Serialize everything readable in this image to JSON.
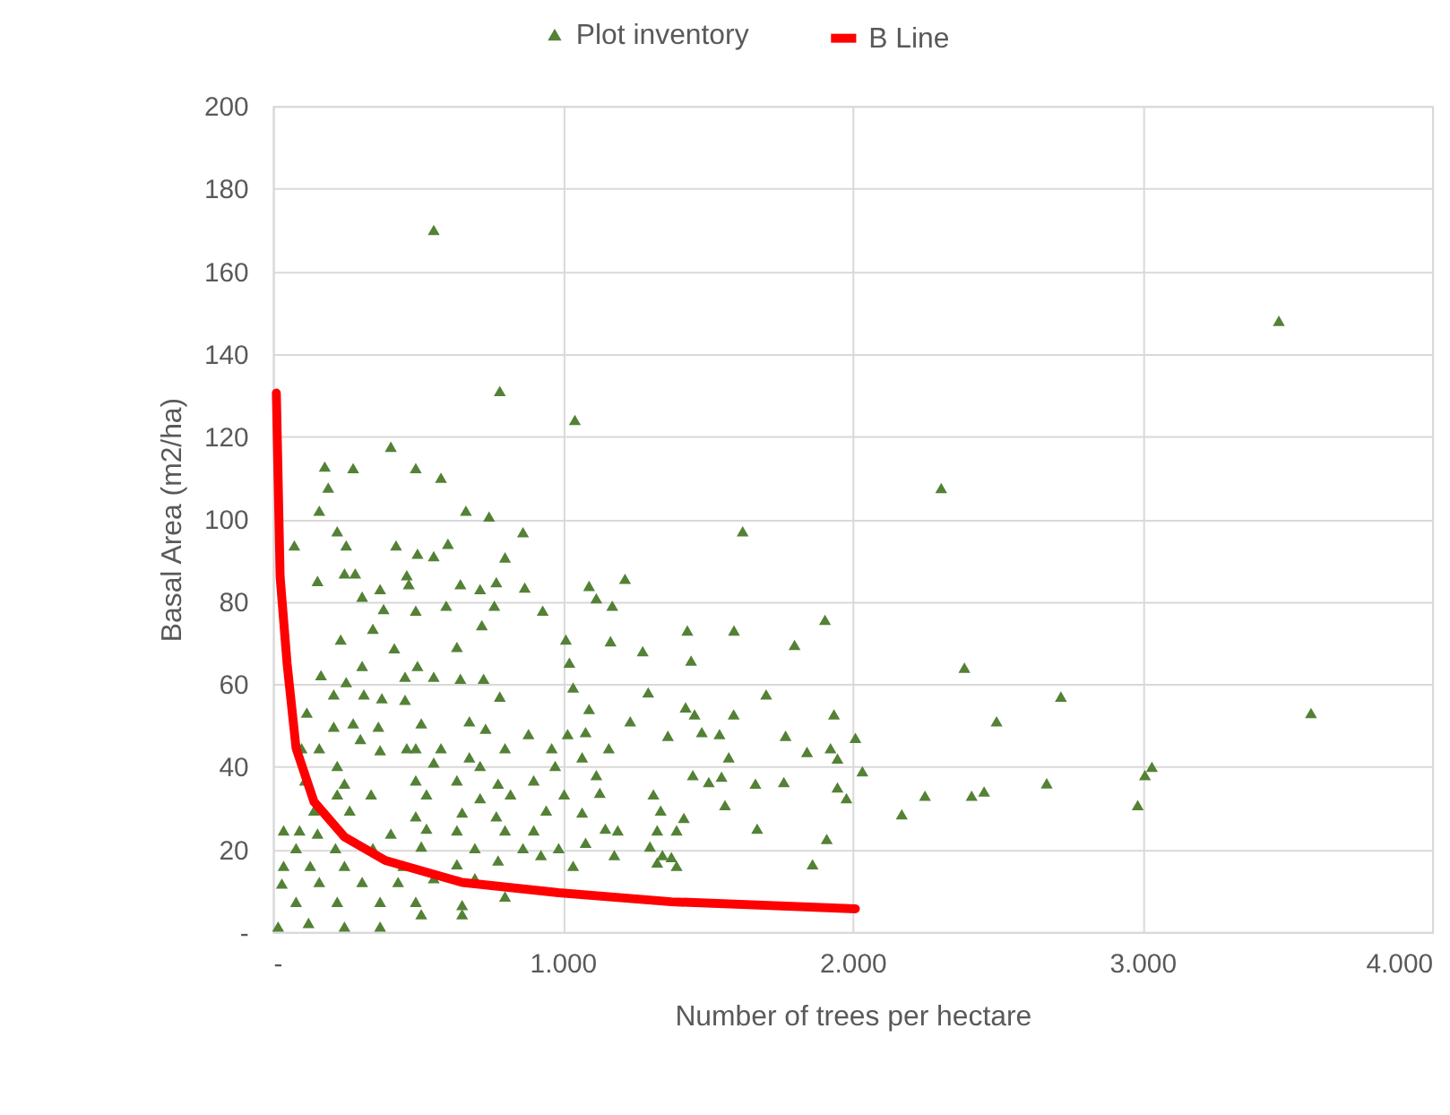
{
  "chart_data": {
    "type": "scatter",
    "xlabel": "Number of trees per hectare",
    "ylabel": "Basal Area (m2/ha)",
    "xlim": [
      0,
      4000
    ],
    "xticks": [
      {
        "value": 0,
        "label": "-"
      },
      {
        "value": 1000,
        "label": "1.000"
      },
      {
        "value": 2000,
        "label": "2.000"
      },
      {
        "value": 3000,
        "label": "3.000"
      },
      {
        "value": 4000,
        "label": "4.000"
      }
    ],
    "ylim": [
      0,
      200
    ],
    "yticks": [
      {
        "value": 0,
        "label": "-"
      },
      20,
      40,
      60,
      80,
      100,
      120,
      140,
      160,
      180,
      200
    ],
    "grid": true,
    "legend": "top",
    "series": [
      {
        "name": "Plot inventory",
        "marker": "triangle",
        "color": "#538135",
        "x": [
          555,
          783,
          1042,
          2306,
          3471,
          3582,
          2719,
          3033,
          3009,
          2984,
          2670,
          2386,
          2497,
          2250,
          2170,
          2411,
          2454,
          1621,
          1905,
          1430,
          1591,
          1800,
          1443,
          1276,
          1295,
          1702,
          1936,
          1590,
          1424,
          1455,
          1363,
          1480,
          1541,
          1769,
          1843,
          1924,
          1948,
          2010,
          2034,
          1573,
          1449,
          1504,
          1548,
          1665,
          1763,
          1948,
          1979,
          1560,
          1338,
          1418,
          1393,
          1671,
          1911,
          1862,
          1326,
          1301,
          1344,
          1375,
          1393,
          1326,
          407,
          179,
          277,
          493,
          580,
          191,
          160,
          666,
          746,
          222,
          863,
          74,
          253,
          425,
          604,
          499,
          555,
          801,
          154,
          247,
          284,
          462,
          469,
          647,
          715,
          771,
          869,
          1091,
          1215,
          308,
          370,
          598,
          764,
          931,
          1116,
          1171,
          382,
          493,
          721,
          1165,
          1011,
          635,
          419,
          234,
          345,
          1023,
          308,
          166,
          253,
          456,
          499,
          555,
          647,
          727,
          1036,
          1091,
          210,
          314,
          376,
          456,
          783,
          117,
          210,
          277,
          364,
          512,
          678,
          734,
          882,
          1017,
          1079,
          1233,
          99,
          160,
          302,
          370,
          462,
          493,
          580,
          678,
          801,
          962,
          1159,
          222,
          555,
          715,
          974,
          1067,
          111,
          247,
          493,
          635,
          777,
          900,
          1116,
          222,
          339,
          530,
          715,
          820,
          1005,
          1313,
          1128,
          142,
          265,
          493,
          653,
          771,
          943,
          1067,
          37,
          92,
          154,
          407,
          530,
          635,
          801,
          900,
          1147,
          1190,
          80,
          216,
          345,
          512,
          697,
          863,
          986,
          1079,
          1178,
          37,
          129,
          247,
          450,
          635,
          777,
          925,
          1036,
          31,
          160,
          308,
          432,
          555,
          697,
          801,
          80,
          222,
          370,
          493,
          653,
          18,
          123,
          247,
          370,
          512,
          653
        ],
        "values": [
          170,
          131,
          124,
          107.5,
          148,
          53,
          57,
          40,
          38,
          30.7,
          36,
          64,
          51,
          33,
          28.5,
          33,
          34,
          97,
          75.6,
          73,
          73,
          69.5,
          65.7,
          68,
          58,
          57.5,
          52.7,
          52.7,
          54.4,
          52.7,
          47.5,
          48.4,
          47.9,
          47.5,
          43.6,
          44.5,
          42,
          47,
          38.9,
          42.3,
          38,
          36.3,
          37.6,
          35.9,
          36.3,
          35,
          32.4,
          30.7,
          29.4,
          27.6,
          24.6,
          25,
          22.5,
          16.4,
          24.6,
          20.7,
          18.6,
          18.1,
          16,
          16.8,
          117.5,
          112.7,
          112.3,
          112.3,
          110,
          107.6,
          102,
          102,
          100.6,
          97,
          96.8,
          93.6,
          93.6,
          93.6,
          94,
          91.6,
          91,
          90.7,
          85,
          86.8,
          86.8,
          86.4,
          84.2,
          84.2,
          83,
          84.7,
          83.4,
          83.8,
          85.5,
          81.2,
          83,
          79,
          79,
          77.8,
          80.8,
          79,
          78.2,
          77.8,
          74.3,
          70.4,
          70.8,
          69,
          68.7,
          70.8,
          73.4,
          65.2,
          64.4,
          62.2,
          60.5,
          61.8,
          64.4,
          61.8,
          61.3,
          61.3,
          59.2,
          54,
          57.5,
          57.5,
          56.6,
          56.2,
          57,
          53.1,
          49.7,
          50.5,
          49.7,
          50.5,
          51,
          49.2,
          47.9,
          47.9,
          48.4,
          51,
          44.5,
          44.5,
          46.7,
          44,
          44.5,
          44.5,
          44.5,
          42.3,
          44.5,
          44.5,
          44.5,
          40.2,
          41,
          40.2,
          40.2,
          42.3,
          36.7,
          35.9,
          36.7,
          36.7,
          35.9,
          36.7,
          38,
          33.3,
          33.3,
          33.3,
          32.4,
          33.3,
          33.3,
          33.3,
          33.7,
          29.4,
          29.4,
          28,
          28.9,
          28,
          29.4,
          28.9,
          24.6,
          24.6,
          23.8,
          23.8,
          25,
          24.6,
          24.6,
          24.6,
          25,
          24.6,
          20.3,
          20.3,
          20.3,
          20.7,
          20.3,
          20.3,
          20.3,
          21.6,
          18.6,
          16,
          16,
          16,
          16,
          16.4,
          17.3,
          18.6,
          16,
          11.7,
          12.1,
          12.1,
          12.1,
          13,
          13,
          8.6,
          7.3,
          7.3,
          7.3,
          7.3,
          6.5,
          1.3,
          2.2,
          1.3,
          1.3,
          4.3,
          4.3
        ]
      },
      {
        "name": "B Line",
        "type": "line",
        "line_style": "solid",
        "color": "#ff0000",
        "x": [
          12,
          25,
          49,
          80,
          142,
          247,
          388,
          653,
          986,
          1375,
          2010
        ],
        "values": [
          130.5,
          86,
          65,
          44.5,
          31.5,
          23,
          17.3,
          12,
          9.5,
          7.3,
          5.6
        ]
      }
    ]
  }
}
